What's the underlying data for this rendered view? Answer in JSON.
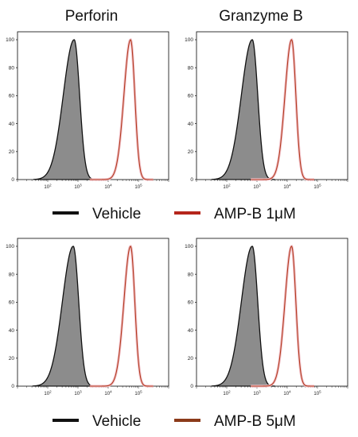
{
  "column_titles": [
    "Perforin",
    "Granzyme B"
  ],
  "legends": [
    {
      "vehicle": "Vehicle",
      "treatment": "AMP-B 1μM"
    },
    {
      "vehicle": "Vehicle",
      "treatment": "AMP-B 5μM"
    }
  ],
  "colors": {
    "vehicle_line": "#111111",
    "vehicle_fill": "#8c8c8c",
    "treatment_line": "#b23a1e",
    "treatment_halo": "#f2c4cc",
    "legend_treatment_1": "#b5261c",
    "legend_treatment_2": "#8b3a1a"
  },
  "chart_data": [
    {
      "type": "area",
      "title": "Perforin",
      "row": 1,
      "column": 1,
      "x_scale": "log",
      "xlim": [
        10,
        1000000
      ],
      "ylim": [
        0,
        100
      ],
      "x_ticks": [
        "10^2",
        "10^3",
        "10^4",
        "10^5"
      ],
      "y_ticks": [
        "0",
        "20",
        "40",
        "60",
        "80",
        "100"
      ],
      "series": [
        {
          "name": "Vehicle",
          "peak_x": 750,
          "peak_y": 100,
          "filled": true
        },
        {
          "name": "AMP-B 1μM",
          "peak_x": 55000,
          "peak_y": 100,
          "filled": false
        }
      ]
    },
    {
      "type": "area",
      "title": "Granzyme B",
      "row": 1,
      "column": 2,
      "x_scale": "log",
      "xlim": [
        10,
        1000000
      ],
      "ylim": [
        0,
        100
      ],
      "x_ticks": [
        "10^2",
        "10^3",
        "10^4",
        "10^5"
      ],
      "y_ticks": [
        "0",
        "20",
        "40",
        "60",
        "80",
        "100"
      ],
      "series": [
        {
          "name": "Vehicle",
          "peak_x": 700,
          "peak_y": 100,
          "filled": true
        },
        {
          "name": "AMP-B 1μM",
          "peak_x": 14000,
          "peak_y": 100,
          "filled": false
        }
      ]
    },
    {
      "type": "area",
      "title": "",
      "row": 2,
      "column": 1,
      "x_scale": "log",
      "xlim": [
        10,
        1000000
      ],
      "ylim": [
        0,
        100
      ],
      "x_ticks": [
        "10^2",
        "10^3",
        "10^4",
        "10^5"
      ],
      "y_ticks": [
        "0",
        "20",
        "40",
        "60",
        "80",
        "100"
      ],
      "series": [
        {
          "name": "Vehicle",
          "peak_x": 700,
          "peak_y": 100,
          "filled": true
        },
        {
          "name": "AMP-B 5μM",
          "peak_x": 55000,
          "peak_y": 100,
          "filled": false
        }
      ]
    },
    {
      "type": "area",
      "title": "",
      "row": 2,
      "column": 2,
      "x_scale": "log",
      "xlim": [
        10,
        1000000
      ],
      "ylim": [
        0,
        100
      ],
      "x_ticks": [
        "10^2",
        "10^3",
        "10^4",
        "10^5"
      ],
      "y_ticks": [
        "0",
        "20",
        "40",
        "60",
        "80",
        "100"
      ],
      "series": [
        {
          "name": "Vehicle",
          "peak_x": 700,
          "peak_y": 100,
          "filled": true
        },
        {
          "name": "AMP-B 5μM",
          "peak_x": 14000,
          "peak_y": 100,
          "filled": false
        }
      ]
    }
  ]
}
